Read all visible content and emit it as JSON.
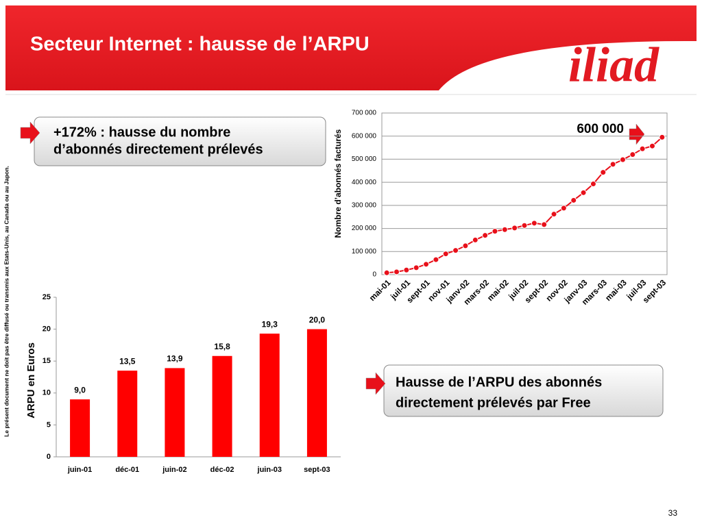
{
  "slide": {
    "title": "Secteur Internet : hausse de l’ARPU",
    "logo": "iliad",
    "callout1": [
      "+172% : hausse du nombre",
      "d’abonnés directement prélevés"
    ],
    "callout2": [
      "Hausse de l’ARPU des abonnés",
      "directement prélevés par Free"
    ],
    "disclaimer": "Le présent document ne doit pas être diffusé ou transmis aux Etats-Unis, au Canada ou au Japon.",
    "page_number": "33"
  },
  "chart_data": [
    {
      "type": "line",
      "y_label": "Nombre d’abonnés facturés",
      "annotation": "600 000",
      "color": "#e8101a",
      "grid": true,
      "categories": [
        "mai-01",
        null,
        "juil-01",
        null,
        "sept-01",
        null,
        "nov-01",
        null,
        "janv-02",
        null,
        "mars-02",
        null,
        "mai-02",
        null,
        "juil-02",
        null,
        "sept-02",
        null,
        "nov-02",
        null,
        "janv-03",
        null,
        "mars-03",
        null,
        "mai-03",
        null,
        "juil-03",
        null,
        "sept-03"
      ],
      "values": [
        8000,
        12000,
        20000,
        30000,
        45000,
        65000,
        90000,
        105000,
        125000,
        150000,
        170000,
        188000,
        195000,
        202000,
        213000,
        223000,
        217000,
        262000,
        288000,
        322000,
        355000,
        393000,
        443000,
        478000,
        498000,
        520000,
        545000,
        557000,
        595000
      ],
      "ylim": [
        0,
        700000
      ],
      "yticks": [
        0,
        {
          "value": 100000,
          "label": "100 000"
        },
        {
          "value": 200000,
          "label": "200 000"
        },
        {
          "value": 300000,
          "label": "300 000"
        },
        {
          "value": 400000,
          "label": "400 000"
        },
        {
          "value": 500000,
          "label": "500 000"
        },
        {
          "value": 600000,
          "label": "600 000"
        },
        {
          "value": 700000,
          "label": "700 000"
        }
      ]
    },
    {
      "type": "bar",
      "y_label": "ARPU en Euros",
      "color": "#ff0000",
      "grid": false,
      "categories": [
        "juin-01",
        "déc-01",
        "juin-02",
        "déc-02",
        "juin-03",
        "sept-03"
      ],
      "values": [
        9.0,
        13.5,
        13.9,
        15.8,
        19.3,
        20.0
      ],
      "value_labels": [
        "9,0",
        "13,5",
        "13,9",
        "15,8",
        "19,3",
        "20,0"
      ],
      "ylim": [
        0,
        25
      ],
      "yticks": [
        0,
        5,
        10,
        15,
        20,
        25
      ]
    }
  ]
}
